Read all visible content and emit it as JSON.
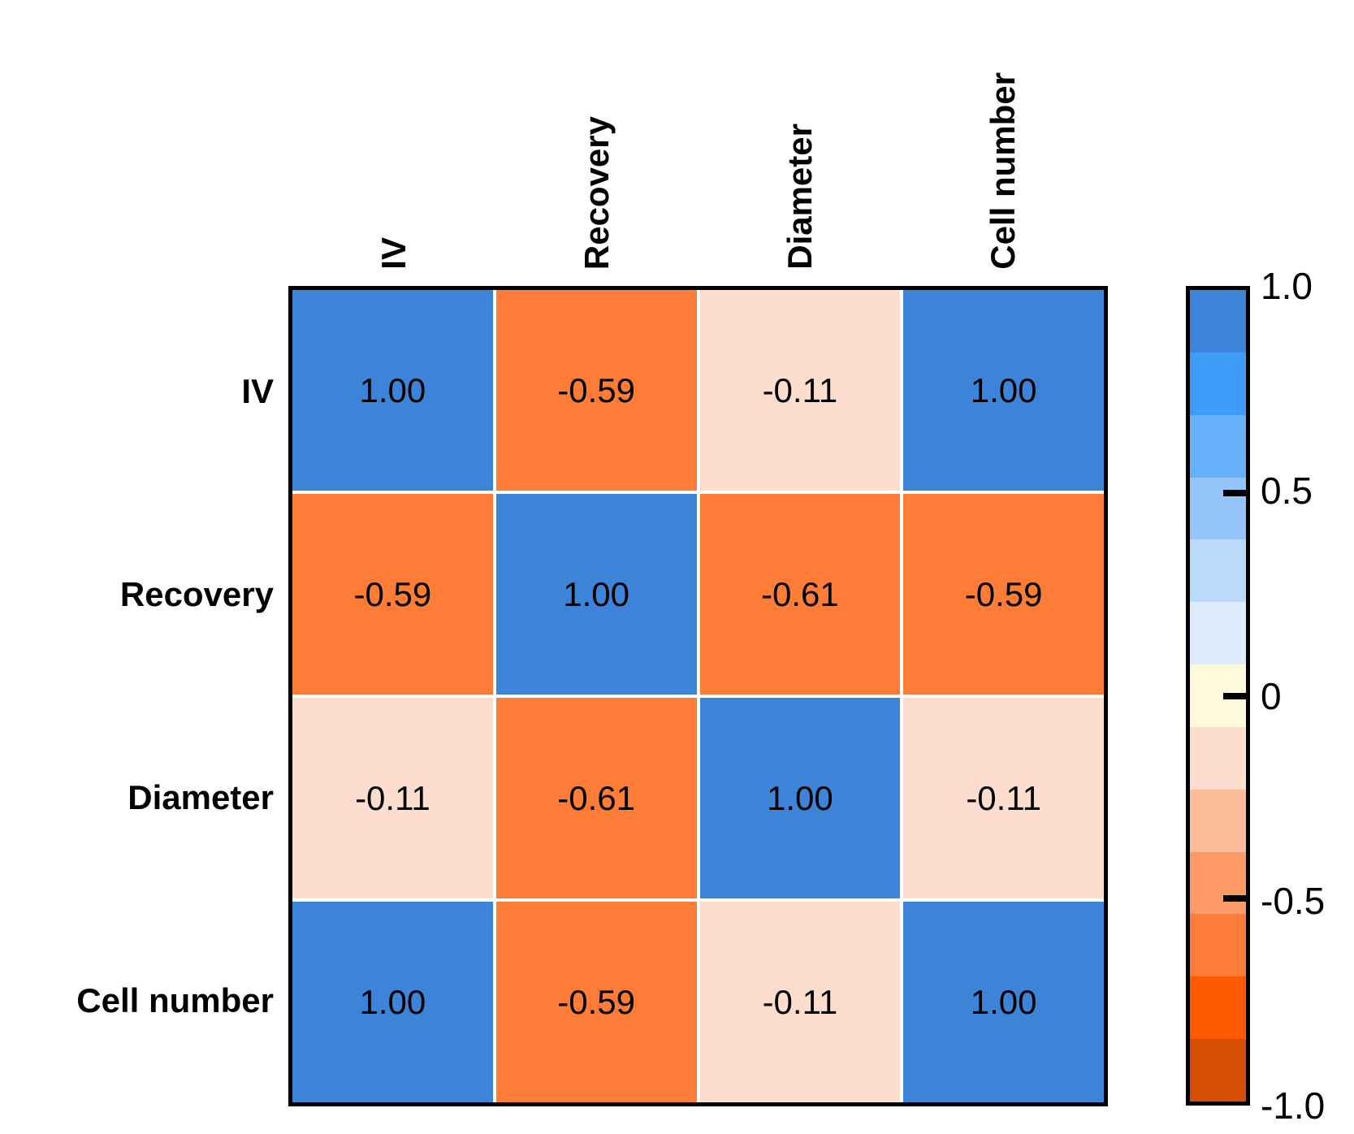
{
  "chart_data": {
    "type": "heatmap",
    "title": "",
    "variables": [
      "IV",
      "Recovery",
      "Diameter",
      "Cell number"
    ],
    "matrix": [
      [
        1.0,
        -0.59,
        -0.11,
        1.0
      ],
      [
        -0.59,
        1.0,
        -0.61,
        -0.59
      ],
      [
        -0.11,
        -0.61,
        1.0,
        -0.11
      ],
      [
        1.0,
        -0.59,
        -0.11,
        1.0
      ]
    ],
    "cell_labels": [
      [
        "1.00",
        "-0.59",
        "-0.11",
        "1.00"
      ],
      [
        "-0.59",
        "1.00",
        "-0.61",
        "-0.59"
      ],
      [
        "-0.11",
        "-0.61",
        "1.00",
        "-0.11"
      ],
      [
        "1.00",
        "-0.59",
        "-0.11",
        "1.00"
      ]
    ],
    "value_range": [
      -1,
      1
    ],
    "grid": false,
    "legend_position": "right-colorbar",
    "colorbar": {
      "tick_labels": [
        "1.0",
        "0.5",
        "0",
        "-0.5",
        "-1.0"
      ],
      "tick_values": [
        1.0,
        0.5,
        0,
        -0.5,
        -1.0
      ],
      "inner_tick_values": [
        0.5,
        0,
        -0.5
      ],
      "segment_colors_top_to_bottom": [
        "#3D84D8",
        "#3F9DFA",
        "#67B0FA",
        "#94C4FA",
        "#BBD9FB",
        "#DDEBFC",
        "#FDFADC",
        "#FDDECE",
        "#FDBD9A",
        "#FD9A66",
        "#FD7C38",
        "#FE5B01",
        "#D54E04"
      ]
    }
  },
  "colors": {
    "background": "#ffffff",
    "cell_text": "#000000",
    "label_text": "#000000",
    "matrix_border": "#000000",
    "gridline": "#ffffff"
  }
}
